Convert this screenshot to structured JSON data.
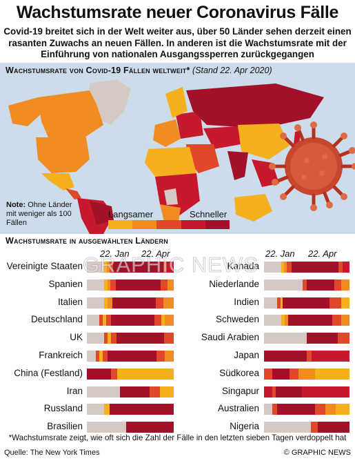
{
  "header": {
    "title": "Wachstumsrate neuer Coronavirus Fälle",
    "subtitle": "Covid-19 breitet sich in der Welt weiter aus, über 50 Länder sehen derzeit einen rasanten Zuwachs an neuen Fällen. In anderen ist die Wachstumsrate mit der Einführung von nationalen Ausgangssperren zurückgegangen"
  },
  "map": {
    "heading": "Wachstumsrate von Covid-19 Fällen weltweit*",
    "date": "(Stand 22. Apr 2020)",
    "note_label": "Note:",
    "note_text": " Ohne Länder mit weniger als 100 Fällen",
    "legend": {
      "slow": "Langsamer",
      "fast": "Schneller",
      "colors": [
        "#f5b01e",
        "#f08c22",
        "#e0482a",
        "#c8182d",
        "#a3102a"
      ]
    }
  },
  "section": {
    "title": "Wachstumsrate in ausgewählten Ländern",
    "date_start": "22. Jan",
    "date_end": "22. Apr"
  },
  "colors": {
    "gray": "#d6c8c2",
    "yellow": "#f5b01e",
    "orange": "#f08c22",
    "red": "#e0482a",
    "crimson": "#c8182d",
    "darkred": "#a3102a"
  },
  "countries_left": [
    {
      "name": "Vereinigte Staaten",
      "segments": [
        [
          "g",
          0.2
        ],
        [
          "y",
          0.03
        ],
        [
          "o",
          0.03
        ],
        [
          "r",
          0.04
        ],
        [
          "d",
          0.58
        ],
        [
          "r",
          0.04
        ],
        [
          "c",
          0.08
        ]
      ]
    },
    {
      "name": "Spanien",
      "segments": [
        [
          "g",
          0.2
        ],
        [
          "y",
          0.04
        ],
        [
          "o",
          0.03
        ],
        [
          "r",
          0.06
        ],
        [
          "d",
          0.52
        ],
        [
          "r",
          0.08
        ],
        [
          "o",
          0.07
        ]
      ]
    },
    {
      "name": "Italien",
      "segments": [
        [
          "g",
          0.2
        ],
        [
          "y",
          0.04
        ],
        [
          "o",
          0.05
        ],
        [
          "d",
          0.5
        ],
        [
          "r",
          0.09
        ],
        [
          "o",
          0.12
        ]
      ]
    },
    {
      "name": "Deutschland",
      "segments": [
        [
          "g",
          0.14
        ],
        [
          "r",
          0.04
        ],
        [
          "y",
          0.04
        ],
        [
          "r",
          0.06
        ],
        [
          "d",
          0.5
        ],
        [
          "r",
          0.08
        ],
        [
          "y",
          0.04
        ],
        [
          "o",
          0.1
        ]
      ]
    },
    {
      "name": "UK",
      "segments": [
        [
          "g",
          0.2
        ],
        [
          "r",
          0.04
        ],
        [
          "y",
          0.04
        ],
        [
          "r",
          0.06
        ],
        [
          "d",
          0.55
        ],
        [
          "r",
          0.11
        ]
      ]
    },
    {
      "name": "Frankreich",
      "segments": [
        [
          "g",
          0.1
        ],
        [
          "r",
          0.04
        ],
        [
          "y",
          0.04
        ],
        [
          "r",
          0.06
        ],
        [
          "d",
          0.56
        ],
        [
          "r",
          0.1
        ],
        [
          "o",
          0.1
        ]
      ]
    },
    {
      "name": "China (Festland)",
      "segments": [
        [
          "d",
          0.28
        ],
        [
          "r",
          0.07
        ],
        [
          "y",
          0.65
        ]
      ]
    },
    {
      "name": "Iran",
      "segments": [
        [
          "g",
          0.38
        ],
        [
          "d",
          0.34
        ],
        [
          "r",
          0.12
        ],
        [
          "y",
          0.16
        ]
      ]
    },
    {
      "name": "Russland",
      "segments": [
        [
          "g",
          0.2
        ],
        [
          "y",
          0.06
        ],
        [
          "d",
          0.74
        ]
      ]
    },
    {
      "name": "Brasilien",
      "segments": [
        [
          "g",
          0.45
        ],
        [
          "d",
          0.55
        ]
      ]
    }
  ],
  "countries_right": [
    {
      "name": "Kanada",
      "segments": [
        [
          "g",
          0.2
        ],
        [
          "y",
          0.03
        ],
        [
          "o",
          0.04
        ],
        [
          "r",
          0.05
        ],
        [
          "d",
          0.55
        ],
        [
          "r",
          0.05
        ],
        [
          "c",
          0.08
        ]
      ]
    },
    {
      "name": "Niederlande",
      "segments": [
        [
          "g",
          0.45
        ],
        [
          "r",
          0.05
        ],
        [
          "d",
          0.32
        ],
        [
          "r",
          0.08
        ],
        [
          "o",
          0.1
        ]
      ]
    },
    {
      "name": "Indien",
      "segments": [
        [
          "g",
          0.15
        ],
        [
          "r",
          0.04
        ],
        [
          "y",
          0.03
        ],
        [
          "d",
          0.55
        ],
        [
          "r",
          0.13
        ],
        [
          "y",
          0.1
        ]
      ]
    },
    {
      "name": "Schweden",
      "segments": [
        [
          "g",
          0.2
        ],
        [
          "y",
          0.04
        ],
        [
          "o",
          0.04
        ],
        [
          "d",
          0.52
        ],
        [
          "r",
          0.1
        ],
        [
          "o",
          0.1
        ]
      ]
    },
    {
      "name": "Saudi Arabien",
      "segments": [
        [
          "g",
          0.5
        ],
        [
          "d",
          0.36
        ],
        [
          "r",
          0.14
        ]
      ]
    },
    {
      "name": "Japan",
      "segments": [
        [
          "d",
          0.5
        ],
        [
          "r",
          0.06
        ],
        [
          "c",
          0.44
        ]
      ]
    },
    {
      "name": "Südkorea",
      "segments": [
        [
          "r",
          0.1
        ],
        [
          "d",
          0.2
        ],
        [
          "r",
          0.1
        ],
        [
          "o",
          0.2
        ],
        [
          "y",
          0.4
        ]
      ]
    },
    {
      "name": "Singapur",
      "segments": [
        [
          "c",
          0.1
        ],
        [
          "r",
          0.04
        ],
        [
          "d",
          0.3
        ],
        [
          "c",
          0.56
        ]
      ]
    },
    {
      "name": "Australien",
      "segments": [
        [
          "g",
          0.1
        ],
        [
          "r",
          0.05
        ],
        [
          "d",
          0.45
        ],
        [
          "r",
          0.12
        ],
        [
          "o",
          0.12
        ],
        [
          "y",
          0.16
        ]
      ]
    },
    {
      "name": "Nigeria",
      "segments": [
        [
          "g",
          0.55
        ],
        [
          "r",
          0.08
        ],
        [
          "d",
          0.37
        ]
      ]
    }
  ],
  "watermark": "GRAPHIC NEWS",
  "footnote": "*Wachstumsrate zeigt, wie oft sich die Zahl der Fälle in den letzten sieben Tagen verdoppelt hat",
  "source": "Quelle: The New York Times",
  "credit": "© GRAPHIC NEWS"
}
